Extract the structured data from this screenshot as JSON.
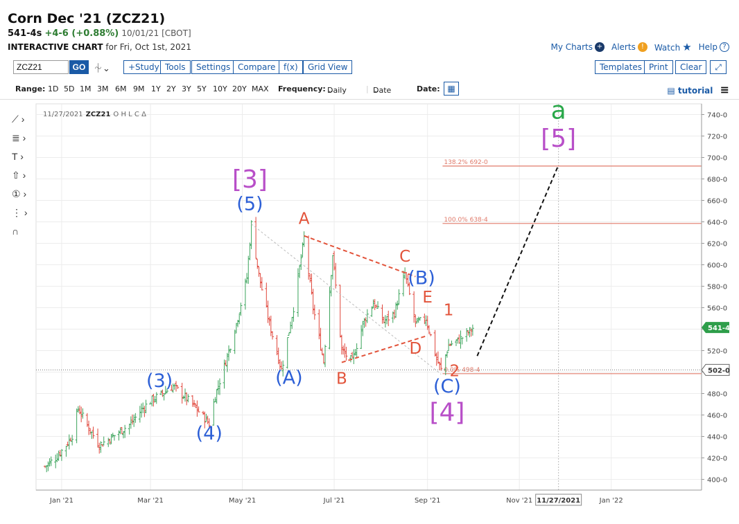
{
  "header": {
    "title": "Corn Dec '21 (ZCZ21)",
    "last": "541-4s",
    "change": "+4-6 (+0.88%)",
    "date_exchange": "10/01/21 [CBOT]",
    "sub_bold": "INTERACTIVE CHART",
    "sub_rest": "for Fri, Oct 1st, 2021"
  },
  "links": {
    "my_charts": "My Charts",
    "alerts": "Alerts",
    "watch": "Watch",
    "help": "Help"
  },
  "toolbar": {
    "symbol_value": "ZCZ21",
    "go": "GO",
    "study": "+Study",
    "tools": "Tools",
    "settings": "Settings",
    "compare": "Compare",
    "fx": "f(x)",
    "grid_view": "Grid View",
    "templates": "Templates",
    "print": "Print",
    "clear": "Clear"
  },
  "rangebar": {
    "range_label": "Range:",
    "ranges": [
      "1D",
      "5D",
      "1M",
      "3M",
      "6M",
      "9M",
      "1Y",
      "2Y",
      "3Y",
      "5Y",
      "10Y",
      "20Y",
      "MAX"
    ],
    "frequency_label": "Frequency:",
    "frequency_value": "Daily",
    "date_mode": "Date",
    "date_label": "Date:",
    "tutorial": "tutorial"
  },
  "chart_data": {
    "type": "line",
    "legend_text": "11/27/2021",
    "legend_symbol": "ZCZ21",
    "legend_fields": "O H L C Δ",
    "y_range": [
      390,
      750
    ],
    "y_ticks": [
      "740-0",
      "720-0",
      "700-0",
      "680-0",
      "660-0",
      "640-0",
      "620-0",
      "600-0",
      "580-0",
      "560-0",
      "540-0",
      "520-0",
      "500-0",
      "480-0",
      "460-0",
      "440-0",
      "420-0",
      "400-0"
    ],
    "x_ticks": [
      "Jan '21",
      "Mar '21",
      "May '21",
      "Jul '21",
      "Sep '21",
      "Nov '21",
      "Jan '22"
    ],
    "x_range_label": "11/27/2021",
    "last_price_label": "541-4",
    "level_label": "502-0",
    "colors": {
      "up": "#3aa35a",
      "down": "#e0453a",
      "elliott_blue": "#2c5fd6",
      "elliott_purple": "#b84fc8",
      "elliott_red": "#e2533a",
      "elliott_green": "#2aa84a",
      "fib": "#e07a6a"
    },
    "series_close": [
      {
        "x": "2020-12-21",
        "y": 412
      },
      {
        "x": "2020-12-28",
        "y": 420
      },
      {
        "x": "2021-01-04",
        "y": 432
      },
      {
        "x": "2021-01-08",
        "y": 441
      },
      {
        "x": "2021-01-12",
        "y": 466
      },
      {
        "x": "2021-01-19",
        "y": 448
      },
      {
        "x": "2021-01-26",
        "y": 432
      },
      {
        "x": "2021-02-02",
        "y": 438
      },
      {
        "x": "2021-02-09",
        "y": 445
      },
      {
        "x": "2021-02-16",
        "y": 452
      },
      {
        "x": "2021-02-23",
        "y": 465
      },
      {
        "x": "2021-03-02",
        "y": 474
      },
      {
        "x": "2021-03-09",
        "y": 480
      },
      {
        "x": "2021-03-16",
        "y": 487
      },
      {
        "x": "2021-03-23",
        "y": 478
      },
      {
        "x": "2021-03-30",
        "y": 468
      },
      {
        "x": "2021-04-06",
        "y": 457
      },
      {
        "x": "2021-04-09",
        "y": 452
      },
      {
        "x": "2021-04-13",
        "y": 478
      },
      {
        "x": "2021-04-20",
        "y": 510
      },
      {
        "x": "2021-04-27",
        "y": 545
      },
      {
        "x": "2021-05-04",
        "y": 588
      },
      {
        "x": "2021-05-07",
        "y": 638
      },
      {
        "x": "2021-05-12",
        "y": 590
      },
      {
        "x": "2021-05-19",
        "y": 545
      },
      {
        "x": "2021-05-27",
        "y": 502
      },
      {
        "x": "2021-06-04",
        "y": 560
      },
      {
        "x": "2021-06-11",
        "y": 625
      },
      {
        "x": "2021-06-17",
        "y": 560
      },
      {
        "x": "2021-06-24",
        "y": 510
      },
      {
        "x": "2021-06-30",
        "y": 610
      },
      {
        "x": "2021-07-06",
        "y": 520
      },
      {
        "x": "2021-07-13",
        "y": 510
      },
      {
        "x": "2021-07-20",
        "y": 545
      },
      {
        "x": "2021-07-27",
        "y": 565
      },
      {
        "x": "2021-08-03",
        "y": 547
      },
      {
        "x": "2021-08-10",
        "y": 555
      },
      {
        "x": "2021-08-17",
        "y": 592
      },
      {
        "x": "2021-08-24",
        "y": 545
      },
      {
        "x": "2021-08-31",
        "y": 550
      },
      {
        "x": "2021-09-07",
        "y": 512
      },
      {
        "x": "2021-09-10",
        "y": 502
      },
      {
        "x": "2021-09-15",
        "y": 525
      },
      {
        "x": "2021-09-22",
        "y": 530
      },
      {
        "x": "2021-09-29",
        "y": 538
      },
      {
        "x": "2021-10-01",
        "y": 541
      }
    ],
    "elliott_labels": [
      {
        "text": "(3)",
        "color": "blue",
        "x": "2021-03-07",
        "y": 486
      },
      {
        "text": "(4)",
        "color": "blue",
        "x": "2021-04-09",
        "y": 437
      },
      {
        "text": "[3]",
        "color": "purple",
        "x": "2021-05-06",
        "y": 672
      },
      {
        "text": "(5)",
        "color": "blue",
        "x": "2021-05-06",
        "y": 651
      },
      {
        "text": "(A)",
        "color": "blue",
        "x": "2021-06-01",
        "y": 489
      },
      {
        "text": "A",
        "color": "red",
        "x": "2021-06-11",
        "y": 638
      },
      {
        "text": "B",
        "color": "red",
        "x": "2021-07-06",
        "y": 489
      },
      {
        "text": "C",
        "color": "red",
        "x": "2021-08-17",
        "y": 603
      },
      {
        "text": "(B)",
        "color": "blue",
        "x": "2021-08-28",
        "y": 582
      },
      {
        "text": "E",
        "color": "red",
        "x": "2021-09-01",
        "y": 565
      },
      {
        "text": "D",
        "color": "red",
        "x": "2021-08-24",
        "y": 517
      },
      {
        "text": "1",
        "color": "red",
        "x": "2021-09-15",
        "y": 553
      },
      {
        "text": "2",
        "color": "red",
        "x": "2021-09-19",
        "y": 496
      },
      {
        "text": "(C)",
        "color": "blue",
        "x": "2021-09-14",
        "y": 481
      },
      {
        "text": "[4]",
        "color": "purple",
        "x": "2021-09-14",
        "y": 455
      },
      {
        "text": "a",
        "color": "green",
        "x": "2021-11-27",
        "y": 736
      },
      {
        "text": "[5]",
        "color": "purple",
        "x": "2021-11-27",
        "y": 710
      }
    ],
    "fib_levels": [
      {
        "label": "138.2% 692-0",
        "value": 692
      },
      {
        "label": "100.0% 638-4",
        "value": 638.5
      },
      {
        "label": "0.0% 498-4",
        "value": 498.5
      }
    ],
    "triangle_upper": [
      {
        "x": "2021-06-11",
        "y": 627
      },
      {
        "x": "2021-08-24",
        "y": 589
      }
    ],
    "triangle_lower": [
      {
        "x": "2021-07-06",
        "y": 509
      },
      {
        "x": "2021-09-01",
        "y": 534
      }
    ],
    "projection": [
      {
        "x": "2021-10-04",
        "y": 515
      },
      {
        "x": "2021-11-27",
        "y": 693
      }
    ],
    "trend_line": [
      {
        "x": "2021-05-07",
        "y": 638
      },
      {
        "x": "2021-09-10",
        "y": 498
      }
    ]
  }
}
